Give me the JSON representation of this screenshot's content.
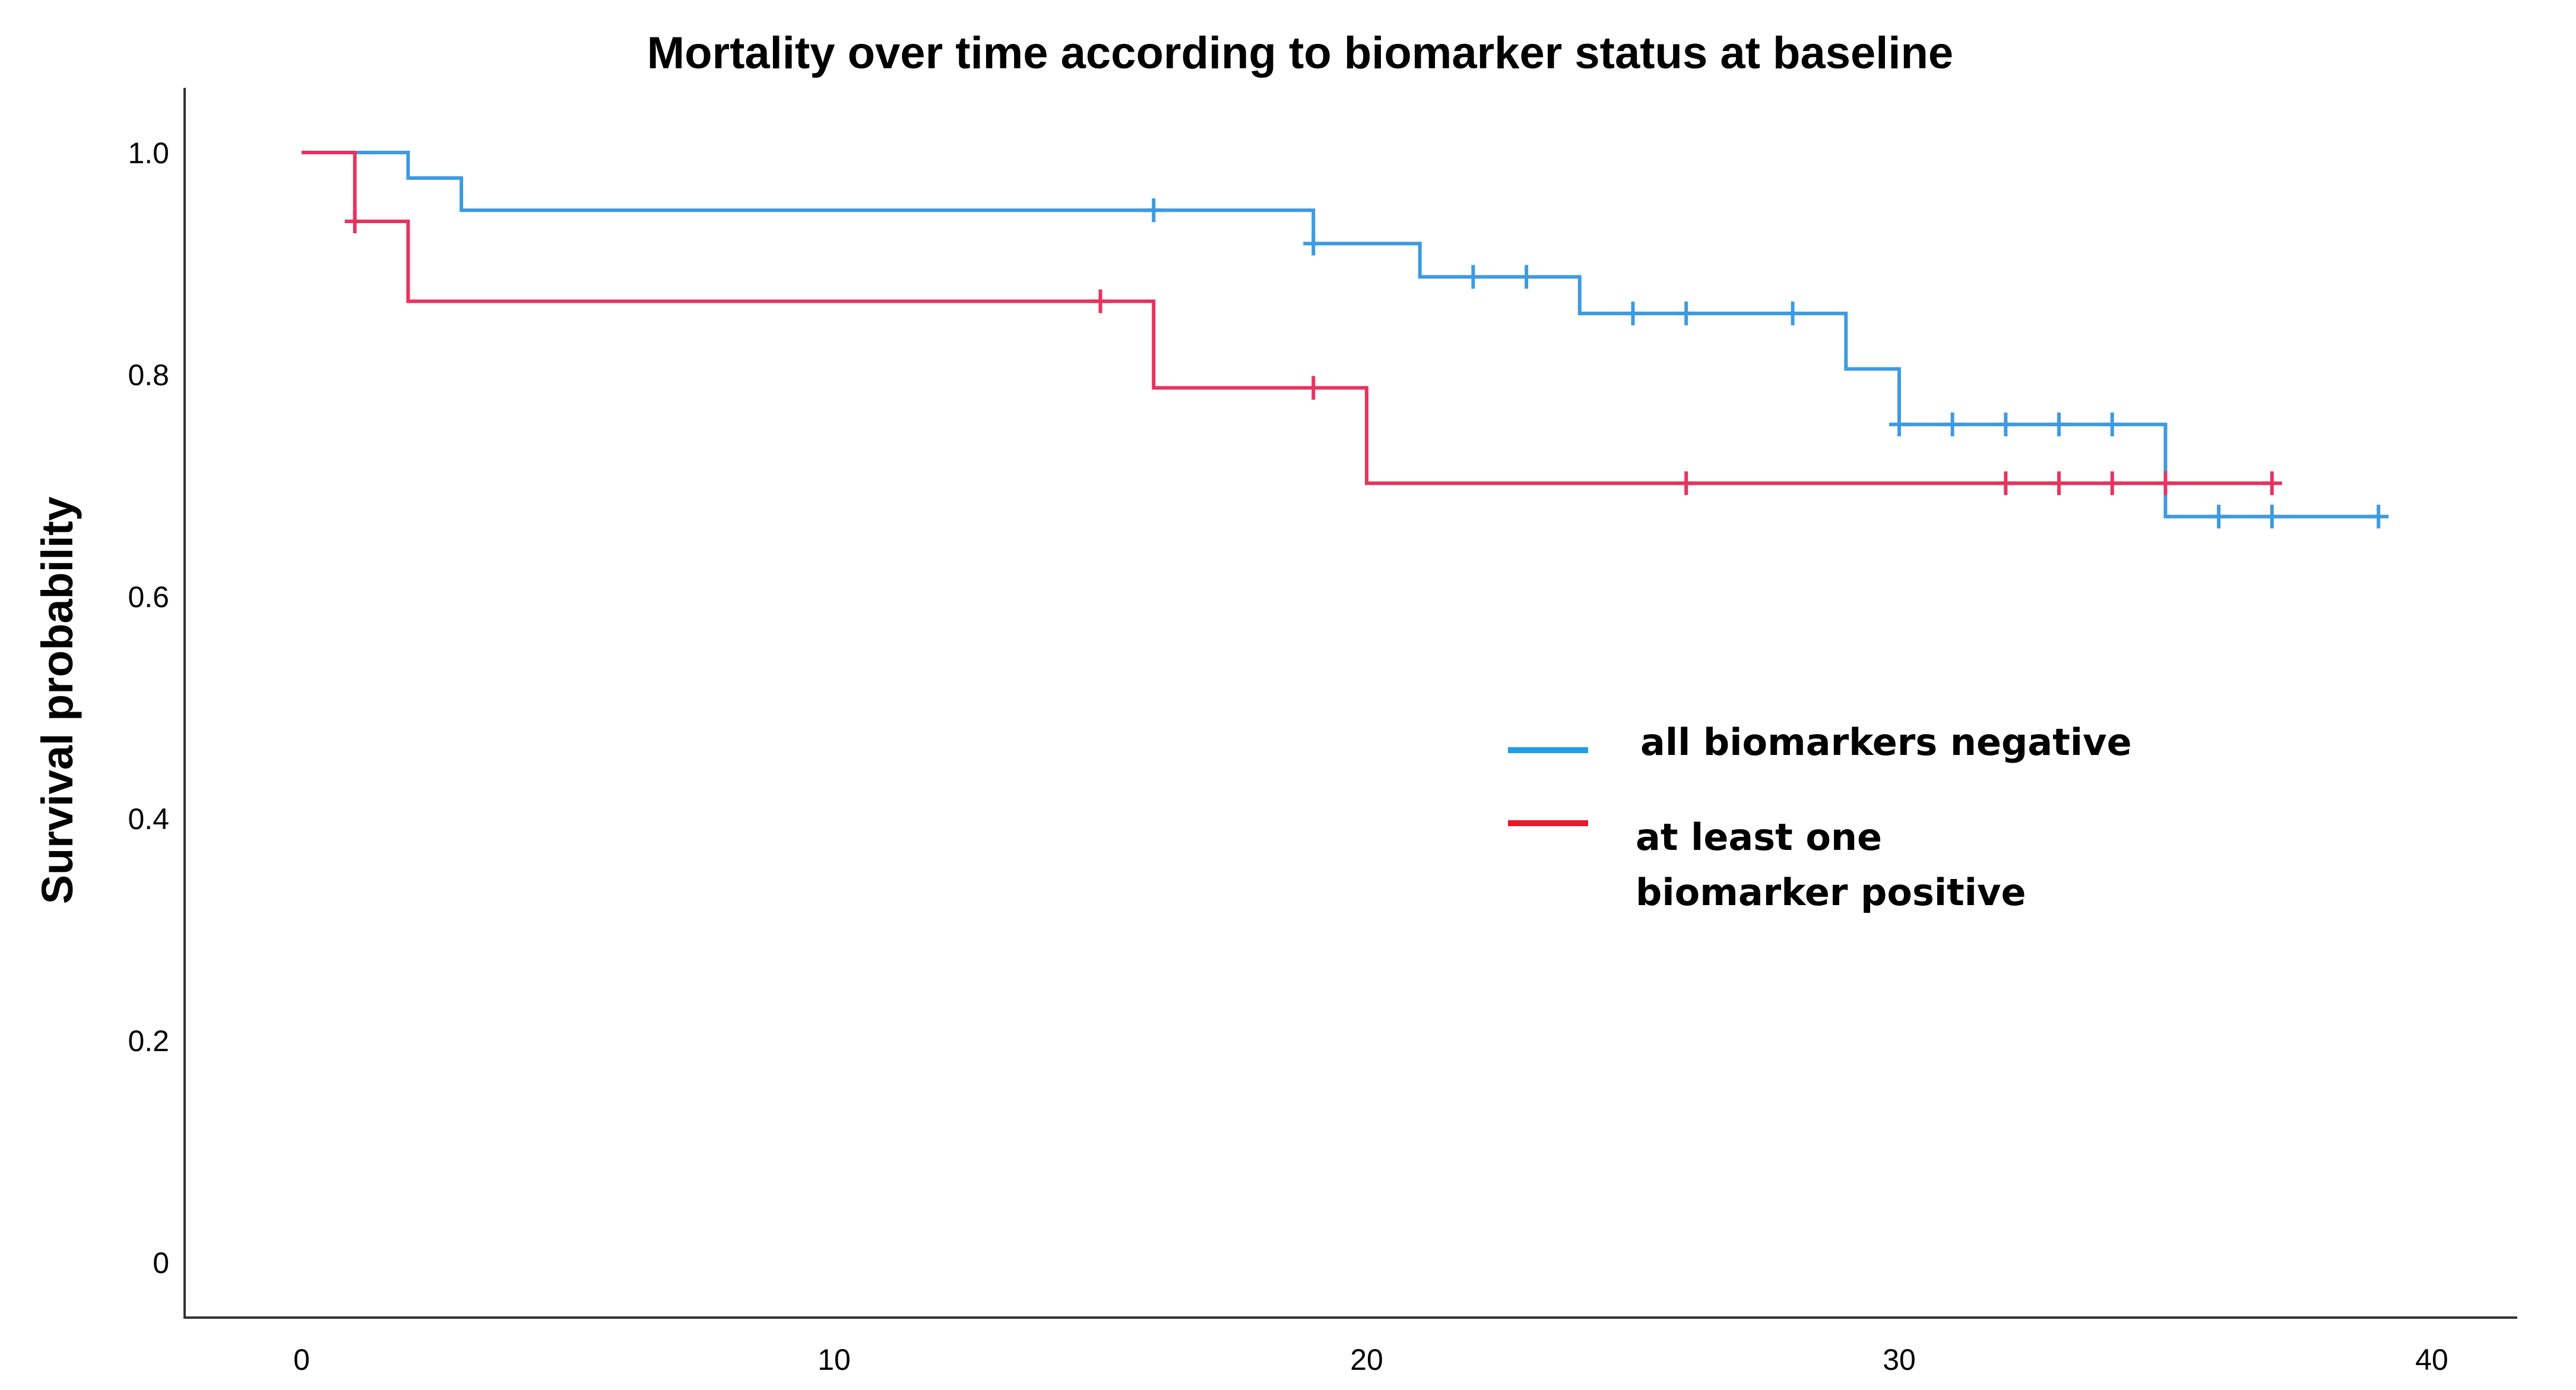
{
  "chart_data": {
    "type": "line",
    "title": "Mortality over time according to biomarker status at baseline",
    "xlabel": "",
    "ylabel": "Survival probability",
    "xlim": [
      0,
      42
    ],
    "ylim": [
      0,
      1.0
    ],
    "x_ticks": [
      "0",
      "10",
      "20",
      "30",
      "40"
    ],
    "y_ticks": [
      "0",
      "0.2",
      "0.4",
      "0.6",
      "0.8",
      "1.0"
    ],
    "grid": false,
    "legend_position": "center-right",
    "series": [
      {
        "name": "all biomarkers negative",
        "color": "#3e9ae0",
        "steps": [
          [
            0,
            1.0
          ],
          [
            2,
            0.977
          ],
          [
            3,
            0.948
          ],
          [
            19,
            0.918
          ],
          [
            21,
            0.888
          ],
          [
            24,
            0.855
          ],
          [
            29,
            0.805
          ],
          [
            30,
            0.755
          ],
          [
            35,
            0.672
          ],
          [
            39,
            0.672
          ]
        ],
        "censored": [
          [
            16,
            0.948
          ],
          [
            19,
            0.918
          ],
          [
            22,
            0.888
          ],
          [
            23,
            0.888
          ],
          [
            25,
            0.855
          ],
          [
            26,
            0.855
          ],
          [
            28,
            0.855
          ],
          [
            30,
            0.755
          ],
          [
            31,
            0.755
          ],
          [
            32,
            0.755
          ],
          [
            33,
            0.755
          ],
          [
            34,
            0.755
          ],
          [
            36,
            0.672
          ],
          [
            37,
            0.672
          ],
          [
            39,
            0.672
          ]
        ]
      },
      {
        "name": "at least one biomarker positive",
        "name_lines": [
          "at least one",
          "biomarker positive"
        ],
        "color": "#e8335e",
        "steps": [
          [
            0,
            1.0
          ],
          [
            1,
            0.938
          ],
          [
            2,
            0.866
          ],
          [
            16,
            0.788
          ],
          [
            20,
            0.702
          ],
          [
            37,
            0.702
          ]
        ],
        "censored": [
          [
            1,
            0.938
          ],
          [
            15,
            0.866
          ],
          [
            19,
            0.788
          ],
          [
            26,
            0.702
          ],
          [
            32,
            0.702
          ],
          [
            33,
            0.702
          ],
          [
            34,
            0.702
          ],
          [
            35,
            0.702
          ],
          [
            37,
            0.702
          ]
        ]
      }
    ]
  }
}
